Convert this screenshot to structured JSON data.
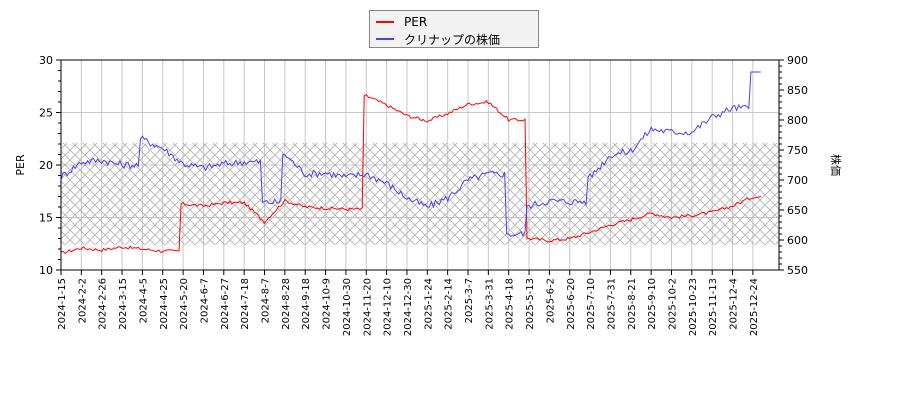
{
  "legend": {
    "items": [
      {
        "label": "PER",
        "color": "#ff0000"
      },
      {
        "label": "クリナップの株価",
        "color": "#4444ee"
      }
    ]
  },
  "axes": {
    "left_title": "PER",
    "right_title": "株価",
    "left_ticks": [
      "10",
      "15",
      "20",
      "25",
      "30"
    ],
    "right_ticks": [
      "550",
      "600",
      "650",
      "700",
      "750",
      "800",
      "850",
      "900"
    ]
  },
  "chart_data": {
    "type": "line",
    "title": "",
    "xlabel": "",
    "ylabel": "PER",
    "ylabel_right": "株価",
    "ylim": [
      10,
      30
    ],
    "ylim_right": [
      550,
      900
    ],
    "grid": true,
    "legend_position": "top-center",
    "shaded_band": {
      "axis": "left",
      "from": 12.4,
      "to": 22.1,
      "style": "crosshatch"
    },
    "categories": [
      "2024-1-15",
      "2024-2-2",
      "2024-2-26",
      "2024-3-15",
      "2024-4-5",
      "2024-4-25",
      "2024-5-20",
      "2024-6-7",
      "2024-6-27",
      "2024-7-18",
      "2024-8-7",
      "2024-8-28",
      "2024-9-18",
      "2024-10-9",
      "2024-10-30",
      "2024-11-20",
      "2024-12-10",
      "2024-12-30",
      "2025-1-24",
      "2025-2-14",
      "2025-3-7",
      "2025-3-31",
      "2025-4-18",
      "2025-5-13",
      "2025-6-2",
      "2025-6-20",
      "2025-7-10",
      "2025-7-31",
      "2025-8-21",
      "2025-9-10",
      "2025-10-2",
      "2025-10-23",
      "2025-11-13",
      "2025-12-4",
      "2025-12-24"
    ],
    "series": [
      {
        "name": "PER",
        "axis": "left",
        "color": "#ff0000",
        "values": [
          11.6,
          12.1,
          11.9,
          12.2,
          12.0,
          11.8,
          16.3,
          16.1,
          16.4,
          16.4,
          14.6,
          16.6,
          16.0,
          15.9,
          15.8,
          26.6,
          25.7,
          24.7,
          24.2,
          24.9,
          25.8,
          26.0,
          24.3,
          13.0,
          12.8,
          13.0,
          13.6,
          14.3,
          14.8,
          15.4,
          15.0,
          15.2,
          15.5,
          16.1,
          17.0
        ]
      },
      {
        "name": "クリナップの株価",
        "axis": "right",
        "color": "#4444ee",
        "values": [
          705,
          730,
          733,
          725,
          768,
          753,
          727,
          720,
          727,
          730,
          663,
          743,
          710,
          712,
          705,
          710,
          695,
          670,
          655,
          670,
          700,
          710,
          610,
          657,
          665,
          664,
          705,
          742,
          748,
          785,
          780,
          780,
          805,
          820,
          880
        ]
      }
    ]
  }
}
